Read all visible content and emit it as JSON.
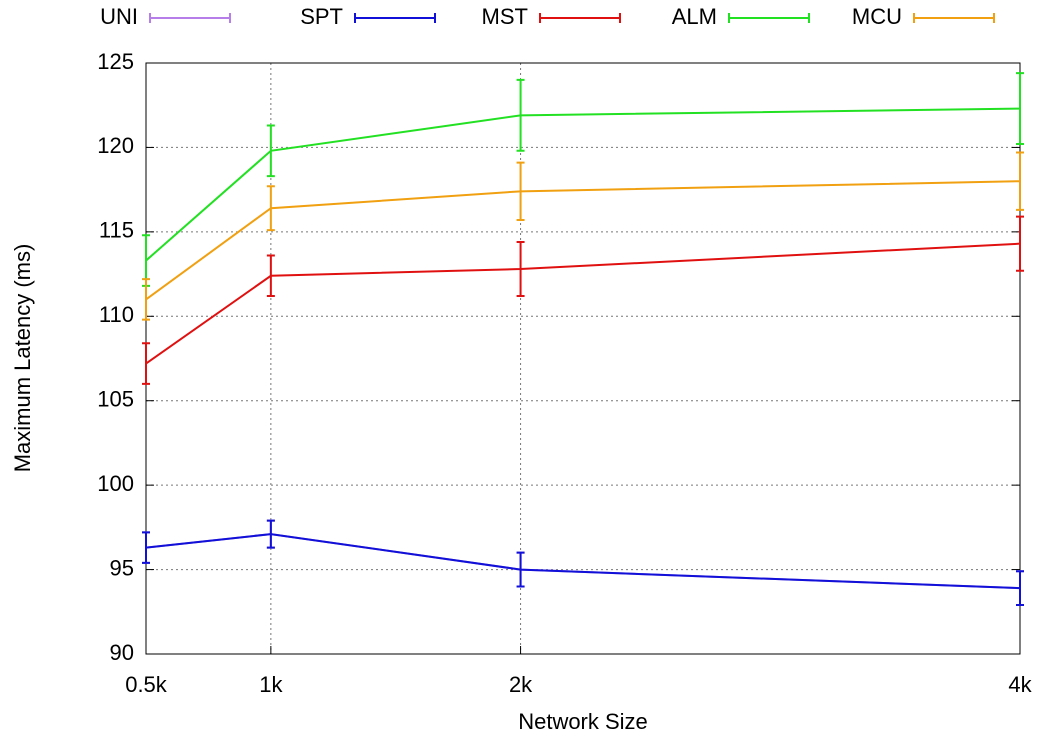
{
  "chart_data": {
    "type": "line",
    "xlabel": "Network Size",
    "ylabel": "Maximum Latency (ms)",
    "x": [
      0.5,
      1,
      2,
      4
    ],
    "xlim": [
      0.5,
      4
    ],
    "xticks": [
      {
        "value": 0.5,
        "label": "0.5k"
      },
      {
        "value": 1,
        "label": "1k"
      },
      {
        "value": 2,
        "label": "2k"
      },
      {
        "value": 4,
        "label": "4k"
      }
    ],
    "ylim": [
      90,
      125
    ],
    "yticks": [
      90,
      95,
      100,
      105,
      110,
      115,
      120,
      125
    ],
    "grid": true,
    "legend": "top",
    "series": [
      {
        "name": "UNI",
        "color": "#b57ee8",
        "values": [
          96.3,
          97.1,
          95.0,
          93.9
        ],
        "errors": [
          0.9,
          0.8,
          1.0,
          1.0
        ]
      },
      {
        "name": "SPT",
        "color": "#1010d8",
        "values": [
          96.3,
          97.1,
          95.0,
          93.9
        ],
        "errors": [
          0.9,
          0.8,
          1.0,
          1.0
        ]
      },
      {
        "name": "MST",
        "color": "#e01010",
        "values": [
          107.2,
          112.4,
          112.8,
          114.3
        ],
        "errors": [
          1.2,
          1.2,
          1.6,
          1.6
        ]
      },
      {
        "name": "ALM",
        "color": "#22e022",
        "values": [
          113.3,
          119.8,
          121.9,
          122.3
        ],
        "errors": [
          1.5,
          1.5,
          2.1,
          2.1
        ]
      },
      {
        "name": "MCU",
        "color": "#f0a010",
        "values": [
          111.0,
          116.4,
          117.4,
          118.0
        ],
        "errors": [
          1.2,
          1.3,
          1.7,
          1.7
        ]
      }
    ]
  }
}
